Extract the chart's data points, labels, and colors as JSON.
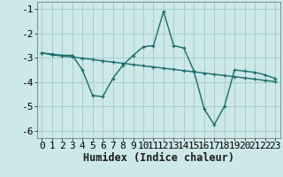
{
  "xlabel": "Humidex (Indice chaleur)",
  "bg_color": "#cce8e8",
  "grid_color": "#aacccc",
  "line_color": "#1a6b6b",
  "x": [
    0,
    1,
    2,
    3,
    4,
    5,
    6,
    7,
    8,
    9,
    10,
    11,
    12,
    13,
    14,
    15,
    16,
    17,
    18,
    19,
    20,
    21,
    22,
    23
  ],
  "y_curvy": [
    -2.8,
    -2.85,
    -2.9,
    -2.9,
    -3.5,
    -4.55,
    -4.6,
    -3.85,
    -3.3,
    -2.9,
    -2.55,
    -2.5,
    -1.1,
    -2.5,
    -2.6,
    -3.55,
    -5.1,
    -5.75,
    -5.0,
    -3.5,
    -3.55,
    -3.6,
    -3.7,
    -3.85
  ],
  "y_linear": [
    -2.8,
    -2.88,
    -2.93,
    -2.97,
    -3.02,
    -3.07,
    -3.13,
    -3.18,
    -3.23,
    -3.28,
    -3.33,
    -3.38,
    -3.43,
    -3.48,
    -3.53,
    -3.58,
    -3.63,
    -3.68,
    -3.73,
    -3.78,
    -3.83,
    -3.88,
    -3.93,
    -3.98
  ],
  "ylim": [
    -6.3,
    -0.7
  ],
  "xlim": [
    -0.5,
    23.5
  ],
  "yticks": [
    -6,
    -5,
    -4,
    -3,
    -2,
    -1
  ],
  "xticks": [
    0,
    1,
    2,
    3,
    4,
    5,
    6,
    7,
    8,
    9,
    10,
    11,
    12,
    13,
    14,
    15,
    16,
    17,
    18,
    19,
    20,
    21,
    22,
    23
  ],
  "tick_fontsize": 8,
  "xlabel_fontsize": 8.5,
  "marker_size": 3.5,
  "linewidth": 1.0
}
